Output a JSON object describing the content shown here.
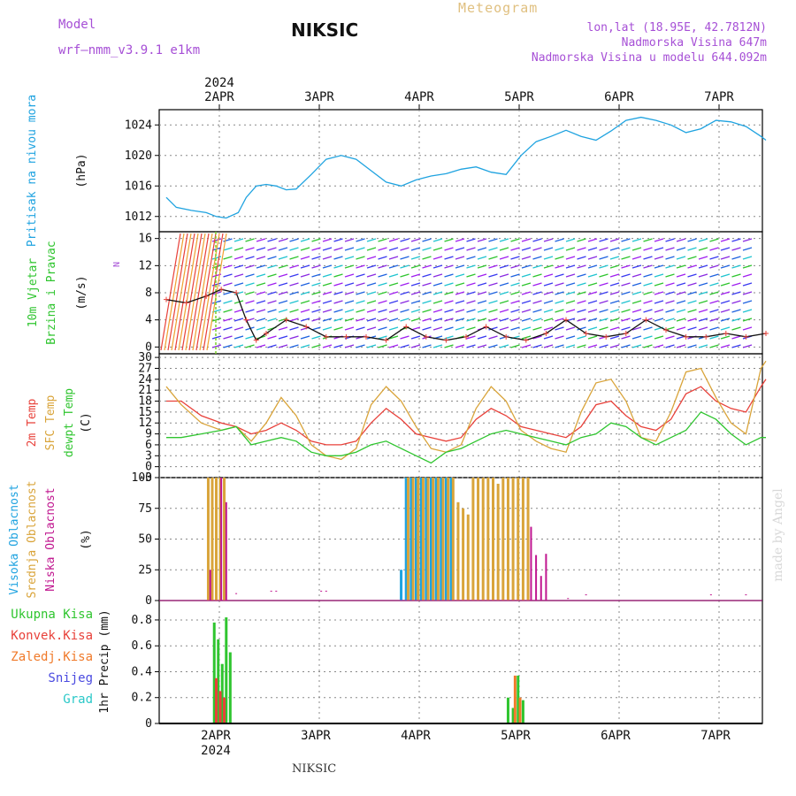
{
  "header": {
    "model_label": "Model",
    "model_name": "wrf—nmm_v3.9.1  e1km",
    "title": "NIKSIC",
    "subtitle": "Meteogram",
    "coords": "lon,lat (18.95E, 42.7812N)",
    "elevation": "Nadmorska Visina 647m",
    "model_elevation": "Nadmorska Visina u modelu 644.092m"
  },
  "footer": {
    "station": "NIKSIC",
    "watermark": "made by Angel"
  },
  "colors": {
    "pressure": "#1fa3e0",
    "temp2m": "#e8413a",
    "sfc": "#d9a43a",
    "dewpt": "#2fc52f",
    "high_cloud": "#1fa3e0",
    "mid_cloud": "#d9a43a",
    "low_cloud": "#c0168f",
    "total_precip": "#2fc52f",
    "conv_precip": "#e8413a",
    "frozen_precip": "#f07a2a",
    "snow": "#4a4ae0",
    "hail": "#2ac8c8"
  },
  "chart_data": [
    {
      "type": "line",
      "panel": "pressure",
      "top_axis": {
        "year": "2024",
        "ticks": [
          "2APR",
          "3APR",
          "4APR",
          "5APR",
          "6APR",
          "7APR"
        ]
      },
      "ylabel_lines": [
        "Pritisak na nivou mora",
        "(hPa)"
      ],
      "yticks": [
        1012,
        1016,
        1020,
        1024
      ],
      "ylim": [
        1010,
        1026
      ],
      "xlim": [
        0,
        6
      ],
      "series": [
        {
          "x": [
            0,
            0.1,
            0.25,
            0.4,
            0.5,
            0.6,
            0.72,
            0.8,
            0.9,
            1.0,
            1.1,
            1.2,
            1.3,
            1.45,
            1.6,
            1.75,
            1.9,
            2.05,
            2.2,
            2.35,
            2.5,
            2.65,
            2.8,
            2.95,
            3.1,
            3.25,
            3.4,
            3.55,
            3.7,
            3.85,
            4.0,
            4.15,
            4.3,
            4.45,
            4.6,
            4.75,
            4.9,
            5.05,
            5.2,
            5.35,
            5.5,
            5.65,
            5.8,
            5.95,
            6.0
          ],
          "y": [
            1014.5,
            1013.2,
            1012.8,
            1012.5,
            1012,
            1011.8,
            1012.5,
            1014.5,
            1016,
            1016.2,
            1016,
            1015.5,
            1015.6,
            1017.5,
            1019.5,
            1020,
            1019.5,
            1018,
            1016.5,
            1016,
            1016.8,
            1017.3,
            1017.6,
            1018.2,
            1018.5,
            1017.8,
            1017.5,
            1020,
            1021.8,
            1022.5,
            1023.3,
            1022.5,
            1022,
            1023.2,
            1024.6,
            1025,
            1024.6,
            1024,
            1023,
            1023.5,
            1024.6,
            1024.4,
            1023.8,
            1022.5,
            1022
          ]
        }
      ]
    },
    {
      "type": "line",
      "panel": "wind",
      "ylabel_lines": [
        "10m Vjetar",
        "Brzina i Pravac",
        "(m/s)"
      ],
      "compass_label": "N",
      "yticks": [
        0,
        4,
        8,
        12,
        16
      ],
      "ylim": [
        -1,
        17
      ],
      "xlim": [
        0,
        6
      ],
      "series": [
        {
          "name": "speed",
          "x": [
            0,
            0.2,
            0.4,
            0.55,
            0.7,
            0.8,
            0.9,
            1.0,
            1.2,
            1.4,
            1.6,
            1.8,
            2.0,
            2.2,
            2.4,
            2.6,
            2.8,
            3.0,
            3.2,
            3.4,
            3.6,
            3.8,
            4.0,
            4.2,
            4.4,
            4.6,
            4.8,
            5.0,
            5.2,
            5.4,
            5.6,
            5.8,
            6.0
          ],
          "y": [
            7,
            6.5,
            7.5,
            8.5,
            8,
            4,
            1,
            2,
            4,
            3,
            1.5,
            1.5,
            1.5,
            1,
            3,
            1.5,
            1,
            1.5,
            3,
            1.5,
            1,
            2,
            4,
            2,
            1.5,
            2,
            4,
            2.5,
            1.5,
            1.5,
            2,
            1.5,
            2
          ]
        }
      ]
    },
    {
      "type": "line",
      "panel": "temperature",
      "ylabel_lines": [
        "2m Temp",
        "SFC Temp",
        "dewpt Temp",
        "(C)"
      ],
      "yticks": [
        -3,
        0,
        3,
        6,
        9,
        12,
        15,
        18,
        21,
        24,
        27,
        30
      ],
      "ylim": [
        -3,
        31
      ],
      "xlim": [
        0,
        6
      ],
      "series": [
        {
          "name": "2m Temp",
          "x": [
            0,
            0.15,
            0.35,
            0.55,
            0.7,
            0.85,
            1.0,
            1.15,
            1.3,
            1.45,
            1.6,
            1.75,
            1.9,
            2.05,
            2.2,
            2.35,
            2.5,
            2.65,
            2.8,
            2.95,
            3.1,
            3.25,
            3.4,
            3.55,
            3.7,
            3.85,
            4.0,
            4.15,
            4.3,
            4.45,
            4.6,
            4.75,
            4.9,
            5.05,
            5.2,
            5.35,
            5.5,
            5.65,
            5.8,
            5.95,
            6.0
          ],
          "y": [
            18,
            18,
            14,
            12,
            11,
            9,
            10,
            12,
            10,
            7,
            6,
            6,
            7,
            12,
            16,
            13,
            9,
            8,
            7,
            8,
            13,
            16,
            14,
            11,
            10,
            9,
            8,
            11,
            17,
            18,
            14,
            11,
            10,
            13,
            20,
            22,
            18,
            16,
            15,
            22,
            24
          ]
        },
        {
          "name": "SFC Temp",
          "x": [
            0,
            0.15,
            0.35,
            0.55,
            0.7,
            0.85,
            1.0,
            1.15,
            1.3,
            1.45,
            1.6,
            1.75,
            1.9,
            2.05,
            2.2,
            2.35,
            2.5,
            2.65,
            2.8,
            2.95,
            3.1,
            3.25,
            3.4,
            3.55,
            3.7,
            3.85,
            4.0,
            4.15,
            4.3,
            4.45,
            4.6,
            4.75,
            4.9,
            5.05,
            5.2,
            5.35,
            5.5,
            5.65,
            5.8,
            5.95,
            6.0
          ],
          "y": [
            22,
            17,
            12,
            10,
            11,
            7,
            12,
            19,
            14,
            6,
            3,
            2,
            5,
            17,
            22,
            18,
            11,
            5,
            4,
            6,
            16,
            22,
            18,
            10,
            7,
            5,
            4,
            15,
            23,
            24,
            18,
            8,
            7,
            15,
            26,
            27,
            19,
            12,
            9,
            27,
            29
          ]
        },
        {
          "name": "dewpt Temp",
          "x": [
            0,
            0.15,
            0.35,
            0.55,
            0.7,
            0.85,
            1.0,
            1.15,
            1.3,
            1.45,
            1.6,
            1.75,
            1.9,
            2.05,
            2.2,
            2.35,
            2.5,
            2.65,
            2.8,
            2.95,
            3.1,
            3.25,
            3.4,
            3.55,
            3.7,
            3.85,
            4.0,
            4.15,
            4.3,
            4.45,
            4.6,
            4.75,
            4.9,
            5.05,
            5.2,
            5.35,
            5.5,
            5.65,
            5.8,
            5.95,
            6.0
          ],
          "y": [
            8,
            8,
            9,
            10,
            11,
            6,
            7,
            8,
            7,
            4,
            3,
            3,
            4,
            6,
            7,
            5,
            3,
            1,
            4,
            5,
            7,
            9,
            10,
            9,
            8,
            7,
            6,
            8,
            9,
            12,
            11,
            8,
            6,
            8,
            10,
            15,
            13,
            9,
            6,
            8,
            8
          ]
        }
      ]
    },
    {
      "type": "bar",
      "panel": "cloud",
      "ylabel_lines": [
        "Visoka Oblacnost",
        "Srednja Oblacnost",
        "Niska Oblacnost",
        "(%)"
      ],
      "yticks": [
        0,
        25,
        50,
        75,
        100
      ],
      "ylim": [
        0,
        100
      ],
      "xlim": [
        0,
        6
      ],
      "series": [
        {
          "name": "Visoka Oblacnost",
          "x": [
            2.35,
            2.4,
            2.45,
            2.5,
            2.55,
            2.6,
            2.65,
            2.7,
            2.75,
            2.8,
            2.85
          ],
          "values": [
            25,
            100,
            100,
            100,
            100,
            100,
            100,
            100,
            100,
            100,
            100
          ]
        },
        {
          "name": "Srednja Oblacnost",
          "x": [
            0.42,
            0.46,
            0.5,
            0.54,
            0.58,
            2.42,
            2.47,
            2.52,
            2.57,
            2.62,
            2.67,
            2.72,
            2.77,
            2.82,
            2.87,
            2.92,
            2.97,
            3.02,
            3.07,
            3.12,
            3.17,
            3.22,
            3.27,
            3.32,
            3.37,
            3.42,
            3.47,
            3.52,
            3.57,
            3.62
          ],
          "values": [
            100,
            100,
            100,
            100,
            100,
            100,
            100,
            100,
            100,
            100,
            100,
            100,
            100,
            100,
            100,
            80,
            75,
            70,
            100,
            100,
            100,
            100,
            100,
            95,
            100,
            100,
            100,
            100,
            100,
            100
          ]
        },
        {
          "name": "Niska Oblacnost",
          "x": [
            0.44,
            0.55,
            0.6,
            0.7,
            1.05,
            1.1,
            1.55,
            1.6,
            3.65,
            3.7,
            3.75,
            3.8,
            4.02,
            4.2,
            5.45,
            5.8
          ],
          "values": [
            25,
            100,
            80,
            6,
            8,
            8,
            8,
            8,
            60,
            37,
            20,
            38,
            2,
            5,
            5,
            5
          ]
        }
      ]
    },
    {
      "type": "bar",
      "panel": "precip",
      "ylabel_lines": [
        "1hr Precip (mm)"
      ],
      "legend": [
        "Ukupna Kisa",
        "Konvek.Kisa",
        "Zaledj.Kisa",
        "Snijeg",
        "Grad"
      ],
      "bottom_axis": {
        "ticks": [
          "2APR",
          "3APR",
          "4APR",
          "5APR",
          "6APR",
          "7APR"
        ],
        "year": "2024"
      },
      "yticks": [
        0,
        0.2,
        0.4,
        0.6,
        0.8
      ],
      "ylim": [
        0,
        0.95
      ],
      "xlim": [
        0,
        6
      ],
      "series": [
        {
          "name": "Ukupna Kisa",
          "x": [
            0.48,
            0.52,
            0.56,
            0.6,
            0.64,
            3.42,
            3.47,
            3.52,
            3.57
          ],
          "values": [
            0.78,
            0.65,
            0.46,
            0.82,
            0.55,
            0.2,
            0.12,
            0.37,
            0.18
          ]
        },
        {
          "name": "Konvek.Kisa",
          "x": [
            0.5,
            0.54,
            0.58
          ],
          "values": [
            0.35,
            0.25,
            0.2
          ]
        },
        {
          "name": "Zaledj.Kisa",
          "x": [
            3.49,
            3.54
          ],
          "values": [
            0.37,
            0.2
          ]
        }
      ]
    }
  ]
}
